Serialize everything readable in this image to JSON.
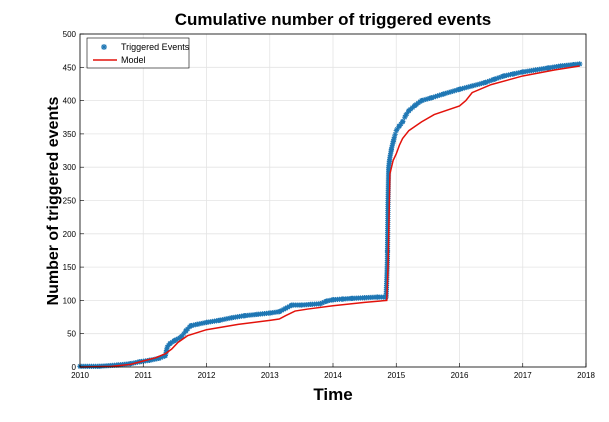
{
  "chart_data": {
    "type": "line",
    "title": "Cumulative number of triggered events",
    "xlabel": "Time",
    "ylabel": "Number of triggered events",
    "xlim": [
      2010,
      2018
    ],
    "ylim": [
      0,
      500
    ],
    "xticks": [
      "2010",
      "2011",
      "2012",
      "2013",
      "2014",
      "2015",
      "2016",
      "2017",
      "2018"
    ],
    "yticks": [
      "0",
      "50",
      "100",
      "150",
      "200",
      "250",
      "300",
      "350",
      "400",
      "450",
      "500"
    ],
    "grid": true,
    "legend_position": "top-left",
    "series": [
      {
        "name": "Triggered Events",
        "style": "markers",
        "marker": "asterisk",
        "color": "#1f77b4",
        "x": [
          2010.0,
          2010.3,
          2010.6,
          2010.8,
          2010.95,
          2011.1,
          2011.25,
          2011.35,
          2011.38,
          2011.42,
          2011.5,
          2011.6,
          2011.68,
          2011.75,
          2011.85,
          2012.0,
          2012.2,
          2012.4,
          2012.6,
          2012.8,
          2013.0,
          2013.15,
          2013.25,
          2013.35,
          2013.5,
          2013.65,
          2013.8,
          2013.9,
          2014.0,
          2014.15,
          2014.3,
          2014.5,
          2014.7,
          2014.84,
          2014.86,
          2014.87,
          2014.88,
          2014.9,
          2014.93,
          2014.97,
          2015.0,
          2015.05,
          2015.1,
          2015.15,
          2015.2,
          2015.3,
          2015.4,
          2015.55,
          2015.75,
          2016.0,
          2016.2,
          2016.4,
          2016.55,
          2016.7,
          2016.85,
          2017.0,
          2017.2,
          2017.4,
          2017.6,
          2017.8,
          2017.9
        ],
        "y": [
          1,
          1,
          3,
          5,
          8,
          10,
          13,
          17,
          30,
          35,
          40,
          45,
          55,
          62,
          64,
          67,
          70,
          74,
          77,
          79,
          81,
          83,
          88,
          93,
          93,
          94,
          95,
          99,
          101,
          102,
          103,
          104,
          105,
          105,
          160,
          250,
          300,
          315,
          330,
          345,
          355,
          362,
          368,
          378,
          385,
          393,
          400,
          404,
          410,
          417,
          422,
          427,
          432,
          437,
          440,
          443,
          446,
          449,
          452,
          454,
          455
        ]
      },
      {
        "name": "Model",
        "style": "line",
        "color": "#e3120b",
        "x": [
          2010.0,
          2010.5,
          2010.8,
          2011.0,
          2011.2,
          2011.35,
          2011.45,
          2011.55,
          2011.7,
          2012.0,
          2012.5,
          2013.0,
          2013.15,
          2013.25,
          2013.4,
          2013.6,
          2014.0,
          2014.5,
          2014.85,
          2014.87,
          2014.9,
          2014.95,
          2015.0,
          2015.05,
          2015.1,
          2015.2,
          2015.4,
          2015.6,
          2016.0,
          2016.1,
          2016.2,
          2016.5,
          2017.0,
          2017.5,
          2017.9
        ],
        "y": [
          0,
          1,
          4,
          9,
          14,
          20,
          27,
          37,
          47,
          56,
          64,
          70,
          72,
          77,
          84,
          87,
          92,
          97,
          100,
          150,
          290,
          310,
          320,
          333,
          343,
          355,
          368,
          379,
          392,
          400,
          412,
          424,
          437,
          446,
          452
        ]
      }
    ]
  }
}
